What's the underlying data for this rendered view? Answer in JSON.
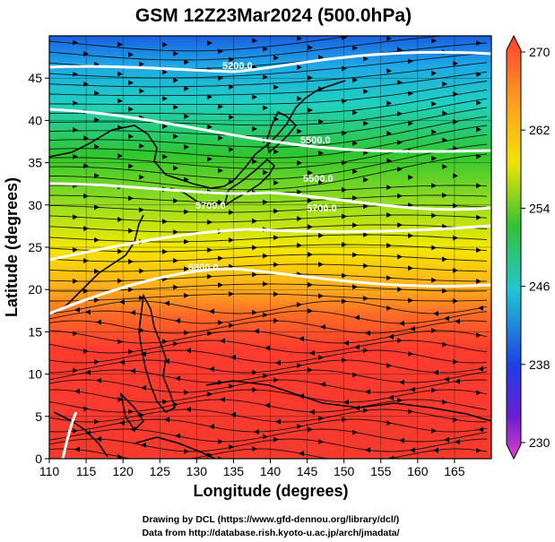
{
  "title": "GSM 12Z23Mar2024 (500.0hPa)",
  "x_axis": {
    "label": "Longitude (degrees)",
    "ticks": [
      "110",
      "115",
      "120",
      "125",
      "130",
      "135",
      "140",
      "145",
      "150",
      "155",
      "160",
      "165"
    ]
  },
  "y_axis": {
    "label": "Latitude  (degrees)",
    "ticks": [
      "0",
      "5",
      "10",
      "15",
      "20",
      "25",
      "30",
      "35",
      "40",
      "45"
    ]
  },
  "colorbar": {
    "labels": [
      "270",
      "262",
      "254",
      "246",
      "238",
      "230"
    ],
    "colors": [
      "#ff3b2f",
      "#ff9a1e",
      "#f2e600",
      "#2fbf2f",
      "#1fc8c8",
      "#1f3fe6",
      "#cc33cc"
    ]
  },
  "contours": [
    {
      "label": "5200.0"
    },
    {
      "label": "5500.0"
    },
    {
      "label": "5500.0"
    },
    {
      "label": "5700.0"
    },
    {
      "label": "5700.0"
    },
    {
      "label": "5800.0"
    }
  ],
  "credits": {
    "line1": "Drawing by DCL (https://www.gfd-dennou.org/library/dcl/)",
    "line2": "Data from http://database.rish.kyoto-u.ac.jp/arch/jmadata/"
  }
}
